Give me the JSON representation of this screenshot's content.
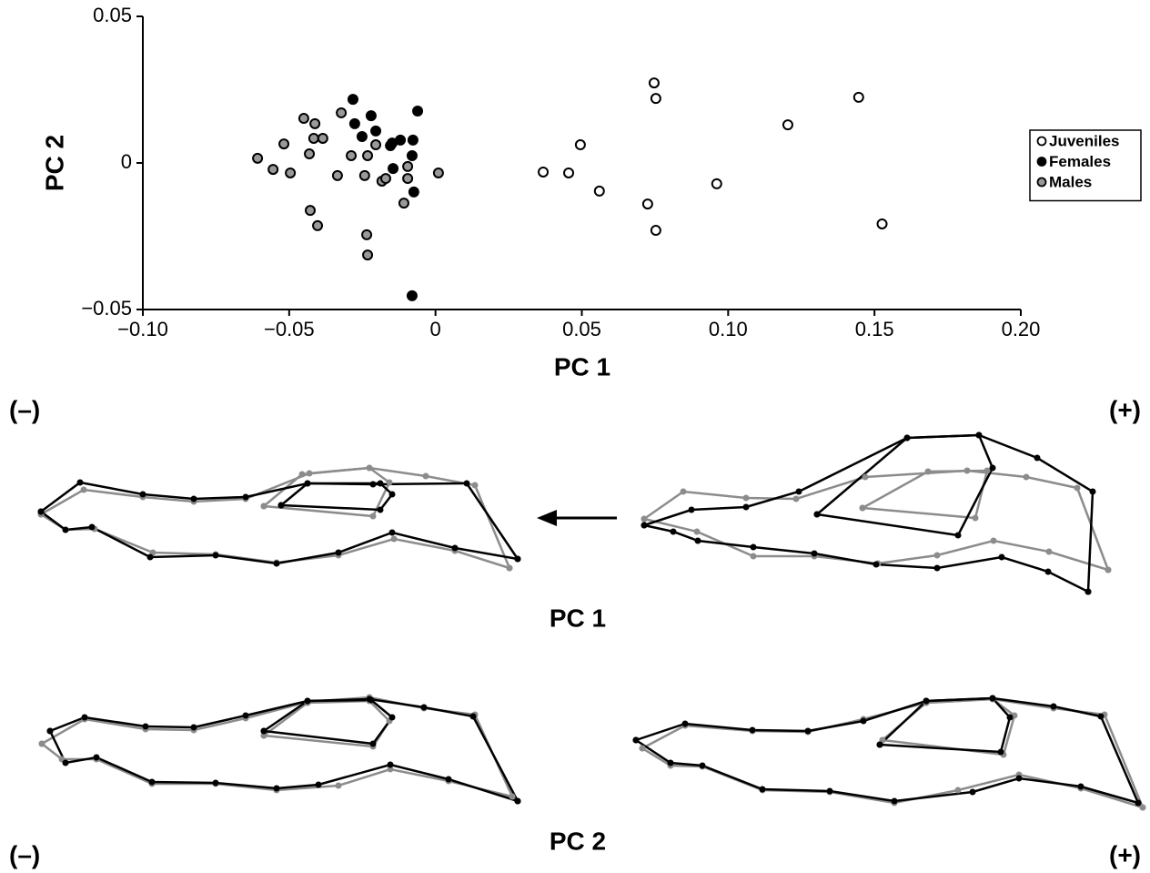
{
  "chart_data": {
    "type": "scatter",
    "xlabel": "PC 1",
    "ylabel": "PC 2",
    "xlim": [
      -0.1,
      0.2
    ],
    "xticks": [
      {
        "value": -0.1,
        "label": "−0.10"
      },
      {
        "value": -0.05,
        "label": "−0.05"
      },
      0,
      0.05,
      {
        "value": 0.1,
        "label": "0.10"
      },
      0.15,
      {
        "value": 0.2,
        "label": "0.20"
      }
    ],
    "ylim": [
      -0.05,
      0.05
    ],
    "yticks": [
      {
        "value": -0.05,
        "label": "−0.05"
      },
      0,
      0.05
    ],
    "grid": false,
    "legend": "right",
    "marker_edge_color": "#000000",
    "series": [
      {
        "name": "Juveniles",
        "color": "#ffffff",
        "x": [
          0.0747,
          0.0753,
          0.1446,
          0.1204,
          0.0495,
          0.0368,
          0.0455,
          0.056,
          0.0725,
          0.0961,
          0.0753,
          0.1526
        ],
        "y": [
          0.0273,
          0.022,
          0.0224,
          0.013,
          0.0062,
          -0.0031,
          -0.0034,
          -0.0096,
          -0.014,
          -0.0071,
          -0.023,
          -0.0208
        ]
      },
      {
        "name": "Females",
        "color": "#000000",
        "x": [
          -0.0282,
          -0.0276,
          -0.022,
          -0.0251,
          -0.0204,
          -0.0148,
          -0.012,
          -0.0154,
          -0.0061,
          -0.0077,
          -0.008,
          -0.0145,
          -0.0074,
          -0.008
        ],
        "y": [
          0.0217,
          0.0134,
          0.0161,
          0.009,
          0.0109,
          0.0068,
          0.0078,
          0.0059,
          0.0177,
          0.0078,
          0.0025,
          -0.0019,
          -0.0099,
          -0.0453
        ]
      },
      {
        "name": "Males",
        "color": "#999999",
        "x": [
          -0.0608,
          -0.0518,
          -0.0555,
          -0.0496,
          -0.045,
          -0.0412,
          -0.0416,
          -0.0385,
          -0.0431,
          -0.0322,
          -0.0335,
          -0.0288,
          -0.0232,
          -0.0242,
          -0.0204,
          -0.0183,
          -0.017,
          -0.0095,
          -0.0095,
          -0.0108,
          0.001,
          -0.0428,
          -0.0403,
          -0.0235,
          -0.0232
        ],
        "y": [
          0.0016,
          0.0065,
          -0.0022,
          -0.0034,
          0.0152,
          0.0134,
          0.0084,
          0.0084,
          0.0031,
          0.0171,
          -0.0043,
          0.0025,
          0.0025,
          -0.0043,
          0.0062,
          -0.0062,
          -0.0053,
          -0.0012,
          -0.0053,
          -0.0137,
          -0.0034,
          -0.0162,
          -0.0214,
          -0.0245,
          -0.0314
        ]
      }
    ]
  },
  "shape_panels": [
    {
      "title": "PC 1",
      "left_label": "(–)",
      "right_label": "(+)"
    },
    {
      "title": "PC 2",
      "left_label": "(–)",
      "right_label": "(+)"
    }
  ]
}
